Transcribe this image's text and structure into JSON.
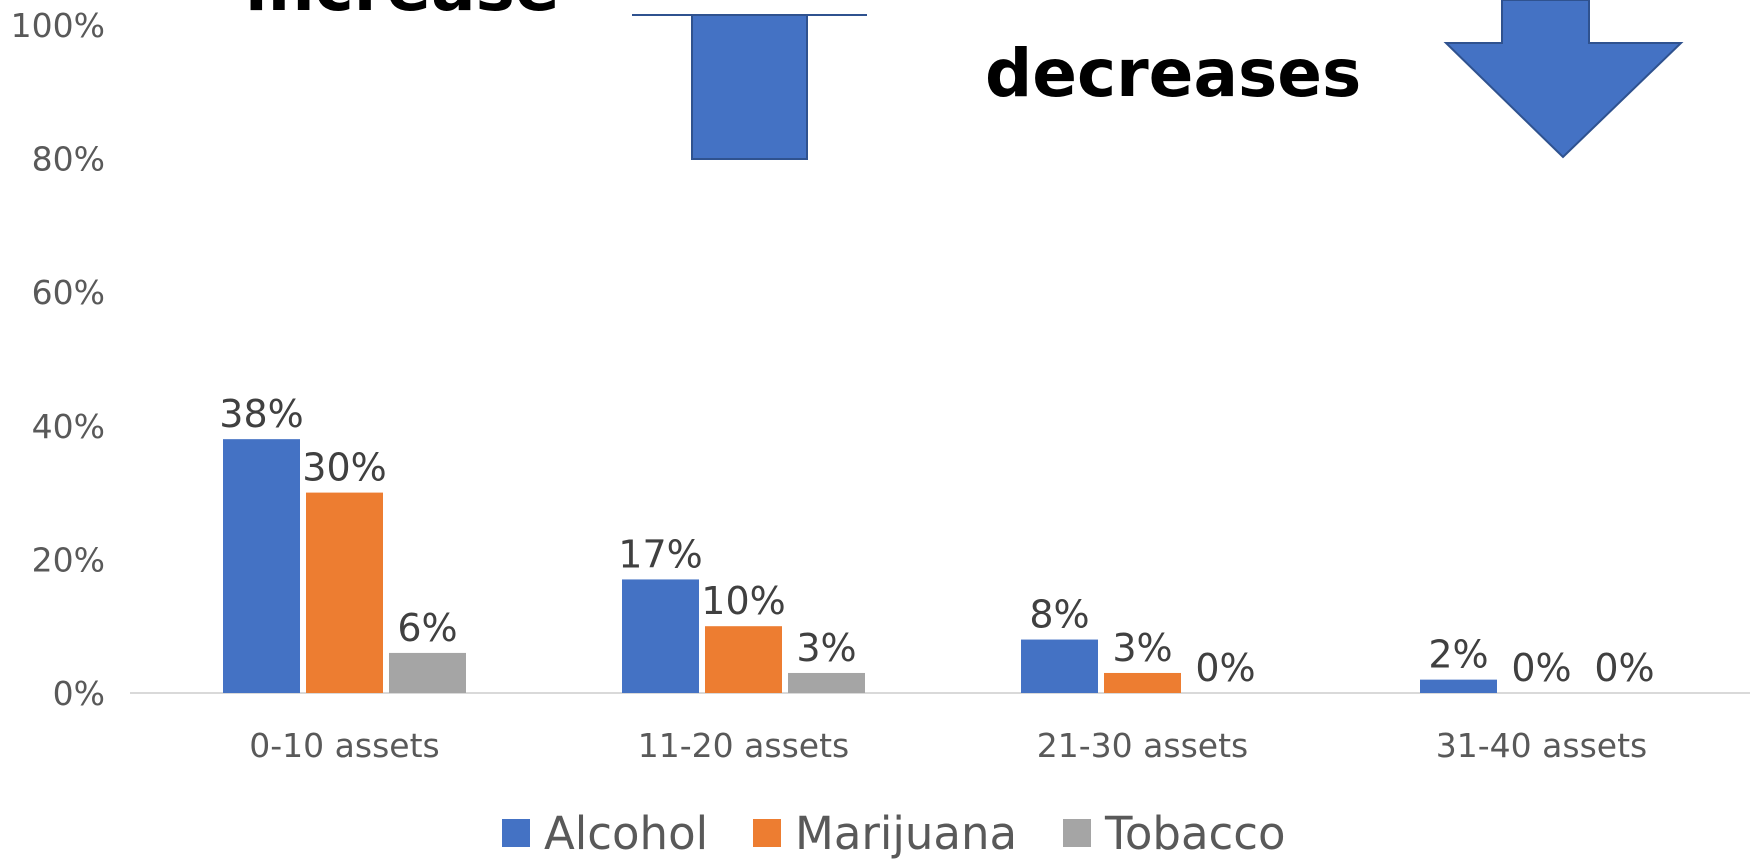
{
  "annotations": {
    "increase_text": "increase",
    "decreases_text": "decreases",
    "up_arrow_icon": "up-arrow-icon",
    "down_arrow_icon": "down-arrow-icon",
    "arrow_color": "#4472C4"
  },
  "chart_data": {
    "type": "bar",
    "categories": [
      "0-10 assets",
      "11-20 assets",
      "21-30 assets",
      "31-40 assets"
    ],
    "series": [
      {
        "name": "Alcohol",
        "color": "#4472C4",
        "values": [
          38,
          17,
          8,
          2
        ],
        "labels": [
          "38%",
          "17%",
          "8%",
          "2%"
        ]
      },
      {
        "name": "Marijuana",
        "color": "#ED7D31",
        "values": [
          30,
          10,
          3,
          0
        ],
        "labels": [
          "30%",
          "10%",
          "3%",
          "0%"
        ]
      },
      {
        "name": "Tobacco",
        "color": "#A5A5A5",
        "values": [
          6,
          3,
          0,
          0
        ],
        "labels": [
          "6%",
          "3%",
          "0%",
          "0%"
        ]
      }
    ],
    "ylim": [
      0,
      100
    ],
    "yticks": [
      "0%",
      "20%",
      "40%",
      "60%",
      "80%",
      "100%"
    ],
    "title": "",
    "xlabel": "",
    "ylabel": "",
    "grid": false,
    "legend_position": "bottom"
  }
}
